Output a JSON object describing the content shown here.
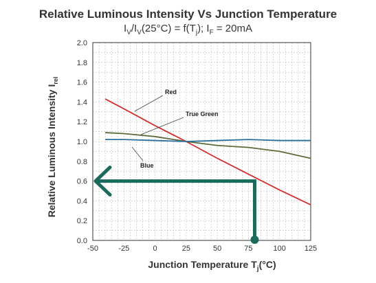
{
  "title": "Relative Luminous Intensity Vs Junction Temperature",
  "subtitle": {
    "i_v_1": "I",
    "sub_1": "V",
    "slash_i": "/I",
    "sub_2": "V",
    "mid": "(25°C) = f(T",
    "sub_3": "j",
    "after": "); I",
    "sub_4": "F",
    "end": " = 20mA"
  },
  "chart_data": {
    "type": "line",
    "title": "Relative Luminous Intensity Vs Junction Temperature",
    "xlabel": "Junction Temperature T",
    "xlabel_sub": "j",
    "xlabel_unit": "(°C)",
    "ylabel": "Relative Luminous Intensity I",
    "ylabel_sub": "rel",
    "xlim": [
      -50,
      125
    ],
    "ylim": [
      0.0,
      2.0
    ],
    "x_ticks": [
      -50,
      -25,
      0,
      25,
      50,
      75,
      100,
      125
    ],
    "y_ticks": [
      "0.0",
      "0.2",
      "0.4",
      "0.6",
      "0.8",
      "1.0",
      "1.2",
      "1.4",
      "1.6",
      "1.8",
      "2.0"
    ],
    "grid": true,
    "series": [
      {
        "name": "Red",
        "color": "#d42e2e",
        "x": [
          -40,
          -25,
          0,
          25,
          50,
          75,
          100,
          125
        ],
        "y": [
          1.43,
          1.33,
          1.16,
          1.0,
          0.83,
          0.67,
          0.51,
          0.36
        ]
      },
      {
        "name": "True Green",
        "color": "#5b6b3c",
        "x": [
          -40,
          -25,
          0,
          25,
          50,
          75,
          100,
          125
        ],
        "y": [
          1.09,
          1.08,
          1.05,
          1.0,
          0.96,
          0.94,
          0.9,
          0.83
        ]
      },
      {
        "name": "Blue",
        "color": "#2a6f9c",
        "x": [
          -40,
          -25,
          0,
          25,
          50,
          75,
          100,
          125
        ],
        "y": [
          1.02,
          1.02,
          1.01,
          1.0,
          1.01,
          1.02,
          1.01,
          1.01
        ]
      }
    ],
    "annotation": {
      "color": "#1a6b5c",
      "x": 80,
      "y": 0.6
    }
  }
}
